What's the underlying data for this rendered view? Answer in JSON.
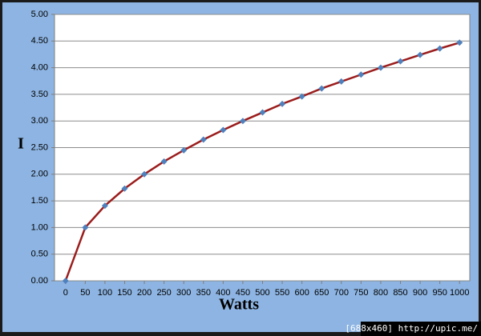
{
  "chart_data": {
    "type": "line",
    "x_label": "Watts",
    "y_label": "I",
    "x": [
      0,
      50,
      100,
      150,
      200,
      250,
      300,
      350,
      400,
      450,
      500,
      550,
      600,
      650,
      700,
      750,
      800,
      850,
      900,
      950,
      1000
    ],
    "series": [
      {
        "line_color": "#9b1c1c",
        "color": "#4f81bd",
        "values": [
          0,
          1,
          1.41,
          1.73,
          2,
          2.24,
          2.45,
          2.65,
          2.83,
          3,
          3.16,
          3.32,
          3.46,
          3.61,
          3.74,
          3.87,
          4,
          4.12,
          4.24,
          4.36,
          4.47
        ]
      }
    ],
    "xlim": [
      -28,
      1026
    ],
    "xticks": [
      0,
      50,
      100,
      150,
      200,
      250,
      300,
      350,
      400,
      450,
      500,
      550,
      600,
      650,
      700,
      750,
      800,
      850,
      900,
      950,
      1000
    ],
    "ylim": [
      0,
      5
    ],
    "yticks": [
      {
        "value": 0,
        "label": "0.00"
      },
      {
        "value": 0.5,
        "label": "0.50"
      },
      {
        "value": 1,
        "label": "1.00"
      },
      {
        "value": 1.5,
        "label": "1.50"
      },
      {
        "value": 2,
        "label": "2.00"
      },
      {
        "value": 2.5,
        "label": "2.50"
      },
      {
        "value": 3,
        "label": "3.00"
      },
      {
        "value": 3.5,
        "label": "3.50"
      },
      {
        "value": 4,
        "label": "4.00"
      },
      {
        "value": 4.5,
        "label": "4.50"
      },
      {
        "value": 5,
        "label": "5.00"
      }
    ],
    "grid": true
  },
  "watermark": "[688x460] http://upic.me/"
}
